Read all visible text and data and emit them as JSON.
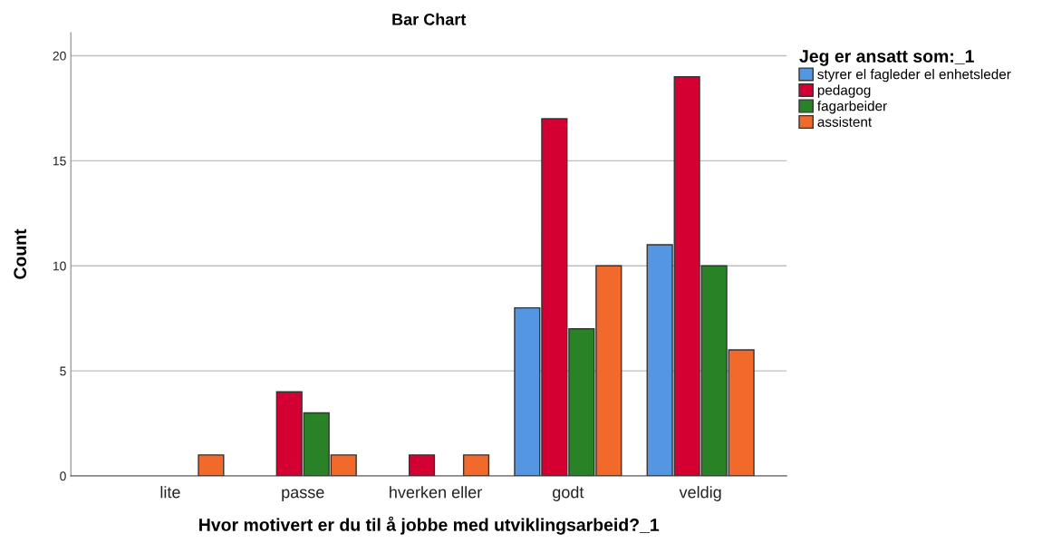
{
  "chart_data": {
    "type": "bar",
    "title": "Bar Chart",
    "xlabel": "Hvor motivert er du til å jobbe med utviklingsarbeid?_1",
    "ylabel": "Count",
    "legend_title": "Jeg er ansatt som:_1",
    "categories": [
      "lite",
      "passe",
      "hverken eller",
      "godt",
      "veldig"
    ],
    "series": [
      {
        "name": "styrer el fagleder el enhetsleder",
        "color": "#5596e3",
        "values": [
          null,
          null,
          null,
          8,
          11
        ]
      },
      {
        "name": "pedagog",
        "color": "#d50032",
        "values": [
          null,
          4,
          1,
          17,
          19
        ]
      },
      {
        "name": "fagarbeider",
        "color": "#2a8227",
        "values": [
          null,
          3,
          null,
          7,
          10
        ]
      },
      {
        "name": "assistent",
        "color": "#f26a2b",
        "values": [
          1,
          1,
          1,
          10,
          6
        ]
      }
    ],
    "ylim": [
      0,
      21.1
    ],
    "yticks": [
      0,
      5,
      10,
      15,
      20
    ],
    "grid": "y",
    "legend": "top right"
  }
}
